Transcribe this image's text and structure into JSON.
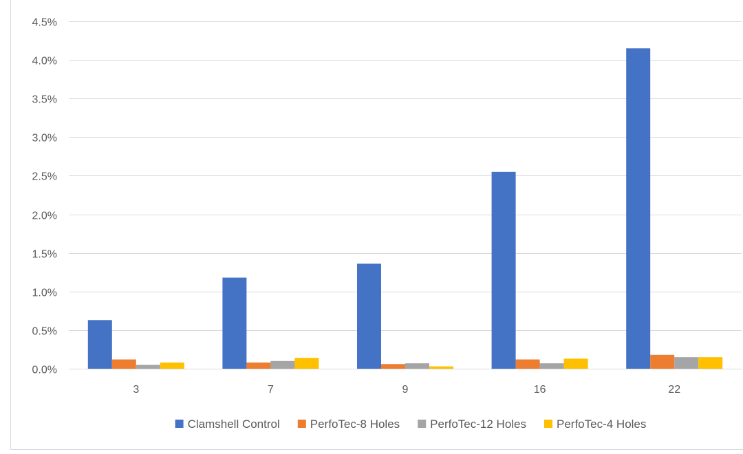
{
  "chart_data": {
    "type": "bar",
    "title": "",
    "xlabel": "",
    "ylabel": "",
    "categories": [
      "3",
      "7",
      "9",
      "16",
      "22"
    ],
    "series": [
      {
        "name": "Clamshell Control",
        "color": "#4472C4",
        "values": [
          0.63,
          1.18,
          1.36,
          2.55,
          4.15
        ]
      },
      {
        "name": "PerfoTec-8 Holes",
        "color": "#ED7D31",
        "values": [
          0.12,
          0.08,
          0.06,
          0.12,
          0.18
        ]
      },
      {
        "name": "PerfoTec-12 Holes",
        "color": "#A5A5A5",
        "values": [
          0.05,
          0.1,
          0.07,
          0.07,
          0.15
        ]
      },
      {
        "name": "PerfoTec-4 Holes",
        "color": "#FFC000",
        "values": [
          0.08,
          0.14,
          0.03,
          0.13,
          0.15
        ]
      }
    ],
    "ylim": [
      0,
      4.5
    ],
    "y_ticks": [
      "0.0%",
      "0.5%",
      "1.0%",
      "1.5%",
      "2.0%",
      "2.5%",
      "3.0%",
      "3.5%",
      "4.0%",
      "4.5%"
    ],
    "grid": true,
    "legend_position": "bottom"
  }
}
